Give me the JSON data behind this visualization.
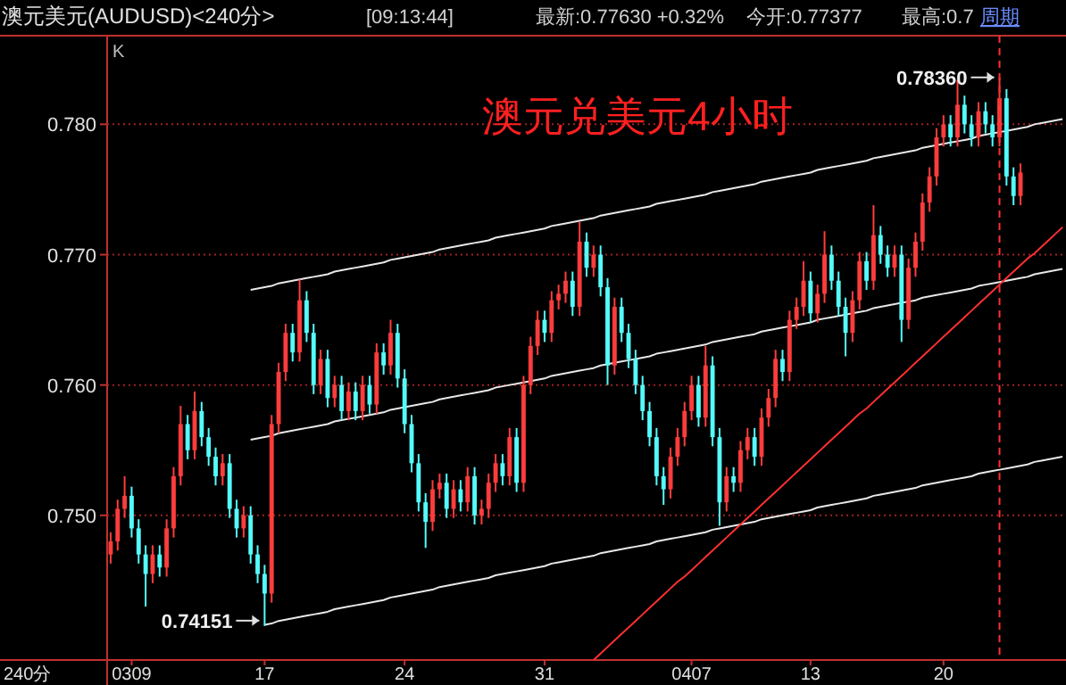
{
  "chart_data": {
    "type": "candlestick",
    "title": "澳元兑美元4小时",
    "subtitle": "澳元美元(AUDUSD)<240分>",
    "annotations": [
      "[09:13:44]",
      "最新:0.77630 +0.32%",
      "今开:0.77377",
      "最高:0.7",
      "周期",
      "K",
      "240分",
      "0.78360",
      {
        "text": "0.74151",
        "x": "17",
        "y": 0.74151
      }
    ],
    "categories": [
      null,
      null,
      null,
      "0309",
      null,
      null,
      null,
      null,
      null,
      null,
      null,
      null,
      null,
      null,
      null,
      null,
      null,
      null,
      null,
      null,
      null,
      null,
      "17",
      null,
      null,
      null,
      null,
      null,
      null,
      null,
      null,
      null,
      null,
      null,
      null,
      null,
      null,
      null,
      null,
      null,
      null,
      null,
      "24",
      null,
      null,
      null,
      null,
      null,
      null,
      null,
      null,
      null,
      null,
      null,
      null,
      null,
      null,
      null,
      null,
      null,
      null,
      null,
      "31",
      null,
      null,
      null,
      null,
      null,
      null,
      null,
      null,
      null,
      null,
      null,
      null,
      null,
      null,
      null,
      null,
      null,
      null,
      null,
      null,
      "0407",
      null,
      null,
      null,
      null,
      null,
      null,
      null,
      null,
      null,
      null,
      null,
      null,
      null,
      null,
      null,
      null,
      "13",
      null,
      null,
      null,
      null,
      null,
      null,
      null,
      null,
      null,
      null,
      null,
      null,
      null,
      null,
      null,
      null,
      null,
      null,
      "20",
      null,
      null,
      null,
      null,
      null,
      null,
      null,
      null,
      null,
      null,
      null,
      null,
      null,
      null,
      null,
      null,
      null
    ],
    "ohlc": [
      [
        0.747,
        0.7487,
        0.7463,
        0.748
      ],
      [
        0.748,
        0.7512,
        0.7473,
        0.7505
      ],
      [
        0.7505,
        0.753,
        0.7498,
        0.7515
      ],
      [
        0.7515,
        0.7522,
        0.7483,
        0.749
      ],
      [
        0.749,
        0.7497,
        0.7463,
        0.747
      ],
      [
        0.747,
        0.7477,
        0.743,
        0.7455
      ],
      [
        0.7455,
        0.7477,
        0.7448,
        0.747
      ],
      [
        0.747,
        0.7477,
        0.7453,
        0.746
      ],
      [
        0.746,
        0.7497,
        0.7453,
        0.749
      ],
      [
        0.749,
        0.7537,
        0.7483,
        0.753
      ],
      [
        0.753,
        0.7584,
        0.7523,
        0.757
      ],
      [
        0.757,
        0.7577,
        0.7543,
        0.755
      ],
      [
        0.755,
        0.7595,
        0.7543,
        0.758
      ],
      [
        0.758,
        0.7587,
        0.7553,
        0.756
      ],
      [
        0.756,
        0.7567,
        0.7538,
        0.7545
      ],
      [
        0.7545,
        0.7552,
        0.7523,
        0.753
      ],
      [
        0.753,
        0.7547,
        0.7523,
        0.754
      ],
      [
        0.754,
        0.7547,
        0.7498,
        0.7505
      ],
      [
        0.7505,
        0.7512,
        0.7483,
        0.749
      ],
      [
        0.749,
        0.7507,
        0.7483,
        0.75
      ],
      [
        0.75,
        0.7507,
        0.7463,
        0.747
      ],
      [
        0.747,
        0.7477,
        0.7448,
        0.7455
      ],
      [
        0.7455,
        0.7462,
        0.74151,
        0.744
      ],
      [
        0.744,
        0.7577,
        0.7433,
        0.757
      ],
      [
        0.757,
        0.7617,
        0.7563,
        0.761
      ],
      [
        0.761,
        0.7647,
        0.7603,
        0.764
      ],
      [
        0.764,
        0.7647,
        0.7618,
        0.7625
      ],
      [
        0.7625,
        0.7681,
        0.7618,
        0.7665
      ],
      [
        0.7665,
        0.7672,
        0.7633,
        0.764
      ],
      [
        0.764,
        0.7647,
        0.7593,
        0.76
      ],
      [
        0.76,
        0.7627,
        0.7593,
        0.762
      ],
      [
        0.762,
        0.7627,
        0.7583,
        0.759
      ],
      [
        0.759,
        0.7607,
        0.7583,
        0.76
      ],
      [
        0.76,
        0.7607,
        0.7573,
        0.758
      ],
      [
        0.758,
        0.7602,
        0.7573,
        0.7595
      ],
      [
        0.7595,
        0.7602,
        0.7573,
        0.758
      ],
      [
        0.758,
        0.7607,
        0.7573,
        0.76
      ],
      [
        0.76,
        0.7607,
        0.7578,
        0.7585
      ],
      [
        0.7585,
        0.7632,
        0.7578,
        0.7625
      ],
      [
        0.7625,
        0.7632,
        0.7608,
        0.7615
      ],
      [
        0.7615,
        0.765,
        0.7608,
        0.764
      ],
      [
        0.764,
        0.7647,
        0.7598,
        0.7605
      ],
      [
        0.7605,
        0.7612,
        0.7563,
        0.757
      ],
      [
        0.757,
        0.7577,
        0.7533,
        0.754
      ],
      [
        0.754,
        0.7547,
        0.7503,
        0.751
      ],
      [
        0.751,
        0.7517,
        0.7475,
        0.7495
      ],
      [
        0.7495,
        0.7527,
        0.7488,
        0.752
      ],
      [
        0.752,
        0.7532,
        0.7513,
        0.7525
      ],
      [
        0.7525,
        0.7532,
        0.7498,
        0.7505
      ],
      [
        0.7505,
        0.7527,
        0.7498,
        0.752
      ],
      [
        0.752,
        0.7527,
        0.7503,
        0.751
      ],
      [
        0.751,
        0.7537,
        0.7503,
        0.753
      ],
      [
        0.753,
        0.7537,
        0.7493,
        0.75
      ],
      [
        0.75,
        0.7512,
        0.7493,
        0.7505
      ],
      [
        0.7505,
        0.7532,
        0.7498,
        0.7525
      ],
      [
        0.7525,
        0.7547,
        0.7518,
        0.754
      ],
      [
        0.754,
        0.7547,
        0.7523,
        0.753
      ],
      [
        0.753,
        0.7567,
        0.7523,
        0.756
      ],
      [
        0.756,
        0.7567,
        0.7518,
        0.7525
      ],
      [
        0.7525,
        0.7607,
        0.7518,
        0.76
      ],
      [
        0.76,
        0.7637,
        0.7593,
        0.763
      ],
      [
        0.763,
        0.7657,
        0.7623,
        0.765
      ],
      [
        0.765,
        0.7657,
        0.7633,
        0.764
      ],
      [
        0.764,
        0.7672,
        0.7633,
        0.7665
      ],
      [
        0.7665,
        0.7677,
        0.7658,
        0.767
      ],
      [
        0.767,
        0.7687,
        0.7663,
        0.768
      ],
      [
        0.768,
        0.7687,
        0.7653,
        0.766
      ],
      [
        0.766,
        0.7725,
        0.7653,
        0.771
      ],
      [
        0.771,
        0.7717,
        0.7683,
        0.769
      ],
      [
        0.769,
        0.7707,
        0.7683,
        0.77
      ],
      [
        0.77,
        0.7707,
        0.7668,
        0.7675
      ],
      [
        0.7675,
        0.7682,
        0.76,
        0.7615
      ],
      [
        0.7615,
        0.7667,
        0.7608,
        0.766
      ],
      [
        0.766,
        0.7667,
        0.7633,
        0.764
      ],
      [
        0.764,
        0.7647,
        0.7613,
        0.762
      ],
      [
        0.762,
        0.7627,
        0.7593,
        0.76
      ],
      [
        0.76,
        0.7607,
        0.7573,
        0.758
      ],
      [
        0.758,
        0.7587,
        0.7553,
        0.756
      ],
      [
        0.756,
        0.7567,
        0.7523,
        0.753
      ],
      [
        0.753,
        0.7537,
        0.7508,
        0.752
      ],
      [
        0.752,
        0.7552,
        0.7513,
        0.7545
      ],
      [
        0.7545,
        0.7567,
        0.7538,
        0.756
      ],
      [
        0.756,
        0.7587,
        0.7553,
        0.758
      ],
      [
        0.758,
        0.7607,
        0.7573,
        0.76
      ],
      [
        0.76,
        0.7607,
        0.7568,
        0.7575
      ],
      [
        0.7575,
        0.763,
        0.7568,
        0.7615
      ],
      [
        0.7615,
        0.7622,
        0.7553,
        0.756
      ],
      [
        0.756,
        0.7567,
        0.7492,
        0.751
      ],
      [
        0.751,
        0.7537,
        0.7503,
        0.753
      ],
      [
        0.753,
        0.7537,
        0.7518,
        0.7525
      ],
      [
        0.7525,
        0.7557,
        0.7518,
        0.755
      ],
      [
        0.755,
        0.7567,
        0.7543,
        0.756
      ],
      [
        0.756,
        0.7567,
        0.7538,
        0.7545
      ],
      [
        0.7545,
        0.7582,
        0.7538,
        0.7575
      ],
      [
        0.7575,
        0.7597,
        0.7568,
        0.759
      ],
      [
        0.759,
        0.7627,
        0.7583,
        0.762
      ],
      [
        0.762,
        0.7627,
        0.7603,
        0.761
      ],
      [
        0.761,
        0.7657,
        0.7603,
        0.765
      ],
      [
        0.765,
        0.7667,
        0.7643,
        0.766
      ],
      [
        0.766,
        0.7695,
        0.7653,
        0.768
      ],
      [
        0.768,
        0.7687,
        0.7648,
        0.7655
      ],
      [
        0.7655,
        0.7677,
        0.7648,
        0.767
      ],
      [
        0.767,
        0.7718,
        0.7663,
        0.77
      ],
      [
        0.77,
        0.7707,
        0.7673,
        0.768
      ],
      [
        0.768,
        0.7687,
        0.7653,
        0.766
      ],
      [
        0.766,
        0.7667,
        0.7622,
        0.764
      ],
      [
        0.764,
        0.7672,
        0.7633,
        0.7665
      ],
      [
        0.7665,
        0.7702,
        0.7658,
        0.7695
      ],
      [
        0.7695,
        0.7702,
        0.7673,
        0.768
      ],
      [
        0.768,
        0.7738,
        0.7673,
        0.7715
      ],
      [
        0.7715,
        0.7722,
        0.7693,
        0.77
      ],
      [
        0.77,
        0.7707,
        0.7683,
        0.769
      ],
      [
        0.769,
        0.7707,
        0.7683,
        0.77
      ],
      [
        0.77,
        0.7707,
        0.7633,
        0.765
      ],
      [
        0.765,
        0.7697,
        0.7643,
        0.769
      ],
      [
        0.769,
        0.7717,
        0.7683,
        0.771
      ],
      [
        0.771,
        0.7747,
        0.7703,
        0.774
      ],
      [
        0.774,
        0.7767,
        0.7733,
        0.776
      ],
      [
        0.776,
        0.7797,
        0.7753,
        0.779
      ],
      [
        0.779,
        0.7807,
        0.7783,
        0.78
      ],
      [
        0.78,
        0.7807,
        0.7783,
        0.779
      ],
      [
        0.779,
        0.7834,
        0.7783,
        0.7815
      ],
      [
        0.7815,
        0.7822,
        0.7793,
        0.78
      ],
      [
        0.78,
        0.7807,
        0.7783,
        0.779
      ],
      [
        0.779,
        0.7817,
        0.7783,
        0.781
      ],
      [
        0.781,
        0.7817,
        0.7793,
        0.78
      ],
      [
        0.78,
        0.7807,
        0.7783,
        0.779
      ],
      [
        0.779,
        0.7836,
        0.7783,
        0.782
      ],
      [
        0.782,
        0.7827,
        0.7753,
        0.776
      ],
      [
        0.776,
        0.7767,
        0.7738,
        0.7745
      ],
      [
        0.7745,
        0.777,
        0.7738,
        0.7763
      ],
      null,
      null,
      null,
      null,
      null,
      null
    ],
    "series": [
      {
        "type": "line",
        "color": "#e8e8e8",
        "values": [
          null,
          null,
          null,
          null,
          null,
          null,
          null,
          null,
          null,
          null,
          null,
          null,
          null,
          null,
          null,
          null,
          null,
          null,
          null,
          null,
          0.7673,
          0.7674,
          0.7675,
          0.7676,
          0.7678,
          0.7679,
          0.768,
          0.7681,
          0.7682,
          0.7683,
          0.7684,
          0.7685,
          0.7687,
          0.7688,
          0.7689,
          0.769,
          0.7691,
          0.7692,
          0.7693,
          0.7694,
          0.7696,
          0.7697,
          0.7698,
          0.7699,
          0.77,
          0.7701,
          0.7702,
          0.7704,
          0.7705,
          0.7706,
          0.7707,
          0.7708,
          0.7709,
          0.771,
          0.7711,
          0.7713,
          0.7714,
          0.7715,
          0.7716,
          0.7717,
          0.7718,
          0.7719,
          0.772,
          0.7722,
          0.7723,
          0.7724,
          0.7725,
          0.7726,
          0.7727,
          0.7728,
          0.773,
          0.7731,
          0.7732,
          0.7733,
          0.7734,
          0.7735,
          0.7736,
          0.7737,
          0.7739,
          0.774,
          0.7741,
          0.7742,
          0.7743,
          0.7744,
          0.7745,
          0.7746,
          0.7748,
          0.7749,
          0.775,
          0.7751,
          0.7752,
          0.7753,
          0.7754,
          0.7756,
          0.7757,
          0.7758,
          0.7759,
          0.776,
          0.7761,
          0.7762,
          0.7763,
          0.7765,
          0.7766,
          0.7767,
          0.7768,
          0.7769,
          0.777,
          0.7771,
          0.7772,
          0.7774,
          0.7775,
          0.7776,
          0.7777,
          0.7778,
          0.7779,
          0.778,
          0.7782,
          0.7783,
          0.7784,
          0.7785,
          0.7786,
          0.7787,
          0.7788,
          0.7789,
          0.7791,
          0.7792,
          0.7793,
          0.7794,
          0.7795,
          0.7796,
          0.7797,
          0.7798,
          0.78,
          0.7801,
          0.7802,
          0.7803,
          0.7804
        ]
      },
      {
        "type": "line",
        "color": "#e8e8e8",
        "values": [
          null,
          null,
          null,
          null,
          null,
          null,
          null,
          null,
          null,
          null,
          null,
          null,
          null,
          null,
          null,
          null,
          null,
          null,
          null,
          null,
          0.7558,
          0.7559,
          0.756,
          0.7561,
          0.7563,
          0.7564,
          0.7565,
          0.7566,
          0.7567,
          0.7568,
          0.7569,
          0.757,
          0.7572,
          0.7573,
          0.7574,
          0.7575,
          0.7576,
          0.7577,
          0.7578,
          0.7579,
          0.7581,
          0.7582,
          0.7583,
          0.7584,
          0.7585,
          0.7586,
          0.7587,
          0.7589,
          0.759,
          0.7591,
          0.7592,
          0.7593,
          0.7594,
          0.7595,
          0.7596,
          0.7598,
          0.7599,
          0.76,
          0.7601,
          0.7602,
          0.7603,
          0.7604,
          0.7605,
          0.7607,
          0.7608,
          0.7609,
          0.761,
          0.7611,
          0.7612,
          0.7613,
          0.7615,
          0.7616,
          0.7617,
          0.7618,
          0.7619,
          0.762,
          0.7621,
          0.7622,
          0.7624,
          0.7625,
          0.7626,
          0.7627,
          0.7628,
          0.7629,
          0.763,
          0.7631,
          0.7633,
          0.7634,
          0.7635,
          0.7636,
          0.7637,
          0.7638,
          0.7639,
          0.7641,
          0.7642,
          0.7643,
          0.7644,
          0.7645,
          0.7646,
          0.7647,
          0.7648,
          0.765,
          0.7651,
          0.7652,
          0.7653,
          0.7654,
          0.7655,
          0.7656,
          0.7657,
          0.7659,
          0.766,
          0.7661,
          0.7662,
          0.7663,
          0.7664,
          0.7665,
          0.7667,
          0.7668,
          0.7669,
          0.767,
          0.7671,
          0.7672,
          0.7673,
          0.7674,
          0.7676,
          0.7677,
          0.7678,
          0.7679,
          0.768,
          0.7681,
          0.7682,
          0.7683,
          0.7685,
          0.7686,
          0.7687,
          0.7688,
          0.7689
        ]
      },
      {
        "type": "line",
        "color": "#e8e8e8",
        "values": [
          null,
          null,
          null,
          null,
          null,
          null,
          null,
          null,
          null,
          null,
          null,
          null,
          null,
          null,
          null,
          null,
          null,
          null,
          null,
          null,
          null,
          null,
          0.7416,
          0.7417,
          0.7419,
          0.742,
          0.7421,
          0.7422,
          0.7423,
          0.7424,
          0.7425,
          0.7426,
          0.7428,
          0.7429,
          0.743,
          0.7431,
          0.7432,
          0.7433,
          0.7434,
          0.7435,
          0.7437,
          0.7438,
          0.7439,
          0.744,
          0.7441,
          0.7442,
          0.7443,
          0.7445,
          0.7446,
          0.7447,
          0.7448,
          0.7449,
          0.745,
          0.7451,
          0.7452,
          0.7454,
          0.7455,
          0.7456,
          0.7457,
          0.7458,
          0.7459,
          0.746,
          0.7461,
          0.7463,
          0.7464,
          0.7465,
          0.7466,
          0.7467,
          0.7468,
          0.7469,
          0.7471,
          0.7472,
          0.7473,
          0.7474,
          0.7475,
          0.7476,
          0.7477,
          0.7478,
          0.748,
          0.7481,
          0.7482,
          0.7483,
          0.7484,
          0.7485,
          0.7486,
          0.7487,
          0.7489,
          0.749,
          0.7491,
          0.7492,
          0.7493,
          0.7494,
          0.7495,
          0.7497,
          0.7498,
          0.7499,
          0.75,
          0.7501,
          0.7502,
          0.7503,
          0.7504,
          0.7506,
          0.7507,
          0.7508,
          0.7509,
          0.751,
          0.7511,
          0.7512,
          0.7513,
          0.7515,
          0.7516,
          0.7517,
          0.7518,
          0.7519,
          0.752,
          0.7521,
          0.7523,
          0.7524,
          0.7525,
          0.7526,
          0.7527,
          0.7528,
          0.7529,
          0.753,
          0.7532,
          0.7533,
          0.7534,
          0.7535,
          0.7536,
          0.7537,
          0.7538,
          0.7539,
          0.7541,
          0.7542,
          0.7543,
          0.7544,
          0.7545
        ]
      },
      {
        "type": "line",
        "color": "#ff3030",
        "values": [
          null,
          null,
          null,
          null,
          null,
          null,
          null,
          null,
          null,
          null,
          null,
          null,
          null,
          null,
          null,
          null,
          null,
          null,
          null,
          null,
          null,
          null,
          null,
          null,
          null,
          null,
          null,
          null,
          null,
          null,
          null,
          null,
          null,
          null,
          null,
          null,
          null,
          null,
          null,
          null,
          null,
          null,
          null,
          null,
          null,
          null,
          null,
          null,
          null,
          null,
          null,
          null,
          null,
          null,
          null,
          null,
          null,
          null,
          null,
          null,
          null,
          null,
          null,
          null,
          null,
          null,
          null,
          null,
          null,
          0.7389,
          0.7394,
          0.7399,
          0.7404,
          0.7409,
          0.7414,
          0.7419,
          0.7424,
          0.7429,
          0.7434,
          0.7439,
          0.7444,
          0.7449,
          0.7453,
          0.7458,
          0.7463,
          0.7468,
          0.7473,
          0.7478,
          0.7483,
          0.7488,
          0.7493,
          0.7498,
          0.7503,
          0.7508,
          0.7513,
          0.7518,
          0.7523,
          0.7528,
          0.7533,
          0.7538,
          0.7543,
          0.7548,
          0.7553,
          0.7558,
          0.7563,
          0.7568,
          0.7573,
          0.7578,
          0.7582,
          0.7587,
          0.7592,
          0.7597,
          0.7602,
          0.7607,
          0.7612,
          0.7617,
          0.7622,
          0.7627,
          0.7632,
          0.7637,
          0.7642,
          0.7647,
          0.7652,
          0.7657,
          0.7662,
          0.7667,
          0.7672,
          0.7677,
          0.7682,
          0.7687,
          0.7692,
          0.7697,
          0.7701,
          0.7706,
          0.7711,
          0.7716,
          0.7721
        ]
      }
    ],
    "ylim": [
      0.7389,
      0.7868
    ],
    "yticks": [
      {
        "value": 0.75,
        "label": "0.750"
      },
      {
        "value": 0.76,
        "label": "0.760"
      },
      {
        "value": 0.77,
        "label": "0.770"
      },
      {
        "value": 0.78,
        "label": "0.780"
      }
    ],
    "grid": "y"
  }
}
